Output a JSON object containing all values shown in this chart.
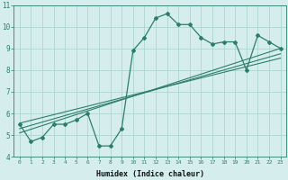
{
  "xlabel": "Humidex (Indice chaleur)",
  "ylabel": "",
  "bg_color": "#d5eeed",
  "line_color": "#2d7d6b",
  "grid_color": "#aed4d0",
  "xlim": [
    -0.5,
    23.5
  ],
  "ylim": [
    4,
    11
  ],
  "yticks": [
    4,
    5,
    6,
    7,
    8,
    9,
    10,
    11
  ],
  "xticks": [
    0,
    1,
    2,
    3,
    4,
    5,
    6,
    7,
    8,
    9,
    10,
    11,
    12,
    13,
    14,
    15,
    16,
    17,
    18,
    19,
    20,
    21,
    22,
    23
  ],
  "main_line_x": [
    0,
    1,
    2,
    3,
    4,
    5,
    6,
    7,
    8,
    9,
    10,
    11,
    12,
    13,
    14,
    15,
    16,
    17,
    18,
    19,
    20,
    21,
    22,
    23
  ],
  "main_line_y": [
    5.5,
    4.7,
    4.9,
    5.5,
    5.5,
    5.7,
    6.0,
    4.5,
    4.5,
    5.3,
    8.9,
    9.5,
    10.4,
    10.6,
    10.1,
    10.1,
    9.5,
    9.2,
    9.3,
    9.3,
    8.0,
    9.6,
    9.3,
    9.0
  ],
  "reg_line1": [
    [
      0,
      23
    ],
    [
      5.1,
      9.0
    ]
  ],
  "reg_line2": [
    [
      0,
      23
    ],
    [
      5.3,
      8.75
    ]
  ],
  "reg_line3": [
    [
      0,
      23
    ],
    [
      5.55,
      8.55
    ]
  ]
}
